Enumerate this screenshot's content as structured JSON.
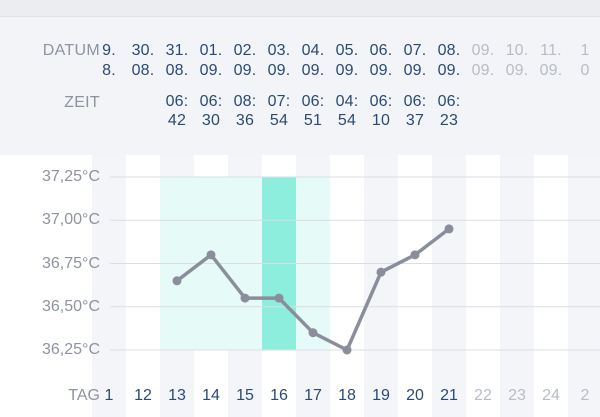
{
  "labels": {
    "datum": "DATUM",
    "zeit": "ZEIT",
    "tag": "TAG"
  },
  "columns": [
    {
      "day": "9.",
      "month": "8.",
      "time_h": "",
      "time_m": "",
      "tag": "1",
      "future": false
    },
    {
      "day": "30.",
      "month": "08.",
      "time_h": "",
      "time_m": "",
      "tag": "12",
      "future": false
    },
    {
      "day": "31.",
      "month": "08.",
      "time_h": "06:",
      "time_m": "42",
      "tag": "13",
      "future": false
    },
    {
      "day": "01.",
      "month": "09.",
      "time_h": "06:",
      "time_m": "30",
      "tag": "14",
      "future": false
    },
    {
      "day": "02.",
      "month": "09.",
      "time_h": "08:",
      "time_m": "36",
      "tag": "15",
      "future": false
    },
    {
      "day": "03.",
      "month": "09.",
      "time_h": "07:",
      "time_m": "54",
      "tag": "16",
      "future": false
    },
    {
      "day": "04.",
      "month": "09.",
      "time_h": "06:",
      "time_m": "51",
      "tag": "17",
      "future": false
    },
    {
      "day": "05.",
      "month": "09.",
      "time_h": "04:",
      "time_m": "54",
      "tag": "18",
      "future": false
    },
    {
      "day": "06.",
      "month": "09.",
      "time_h": "06:",
      "time_m": "10",
      "tag": "19",
      "future": false
    },
    {
      "day": "07.",
      "month": "09.",
      "time_h": "06:",
      "time_m": "37",
      "tag": "20",
      "future": false
    },
    {
      "day": "08.",
      "month": "09.",
      "time_h": "06:",
      "time_m": "23",
      "tag": "21",
      "future": false
    },
    {
      "day": "09.",
      "month": "09.",
      "time_h": "",
      "time_m": "",
      "tag": "22",
      "future": true
    },
    {
      "day": "10.",
      "month": "09.",
      "time_h": "",
      "time_m": "",
      "tag": "23",
      "future": true
    },
    {
      "day": "11.",
      "month": "09.",
      "time_h": "",
      "time_m": "",
      "tag": "24",
      "future": true
    },
    {
      "day": "1",
      "month": "0",
      "time_h": "",
      "time_m": "",
      "tag": "2",
      "future": true
    }
  ],
  "colors": {
    "line": "#8a8e9b",
    "fertile_light": "#e6fbf8",
    "fertile_peak": "#8deedd",
    "past_text": "#2a4a74",
    "future_text": "#b8bcc6",
    "stripe": "#f4f5f8",
    "grid": "#dadde3"
  },
  "chart_data": {
    "type": "line",
    "ylabel_ticks": [
      "37,25°C",
      "37,00°C",
      "36,75°C",
      "36,50°C",
      "36,25°C"
    ],
    "y_tick_values": [
      37.25,
      37.0,
      36.75,
      36.5,
      36.25
    ],
    "ylim": [
      36.25,
      37.25
    ],
    "x": [
      "1",
      "12",
      "13",
      "14",
      "15",
      "16",
      "17",
      "18",
      "19",
      "20",
      "21",
      "22",
      "23",
      "24",
      "2"
    ],
    "series": [
      {
        "values": [
          null,
          null,
          36.65,
          36.8,
          36.55,
          36.55,
          36.35,
          36.25,
          36.7,
          36.8,
          36.95,
          null,
          null,
          null,
          null
        ]
      }
    ],
    "fertile_window_days": [
      "13",
      "14",
      "15",
      "16",
      "17"
    ],
    "peak_day": "16",
    "grid": true
  }
}
